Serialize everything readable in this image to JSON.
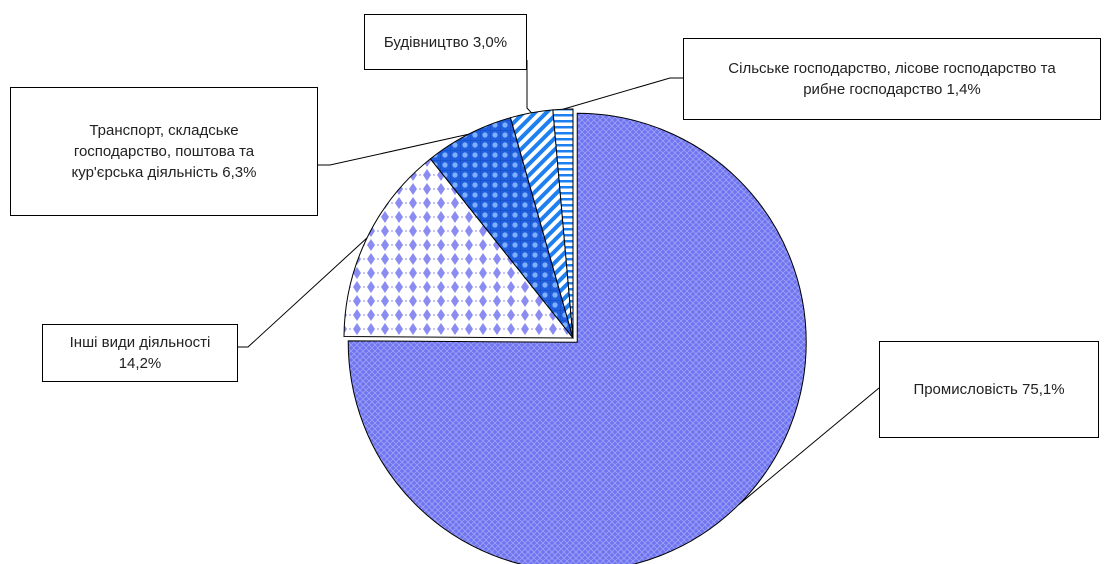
{
  "chart_data": {
    "type": "pie",
    "title": "",
    "slices": [
      {
        "label": "Промисловість 75,1%",
        "value": 75.1,
        "color": "#6f74f0",
        "pattern": "fine-crosshatch"
      },
      {
        "label": "Інші види діяльності 14,2%",
        "value": 14.2,
        "color": "#8a8cf2",
        "pattern": "diamond-dots"
      },
      {
        "label": "Транспорт, складське господарство, поштова та кур'єрська діяльність 6,3%",
        "value": 6.3,
        "color": "#1f5fe0",
        "pattern": "dots-grid"
      },
      {
        "label": "Будівництво 3,0%",
        "value": 3.0,
        "color": "#1e7ff0",
        "pattern": "diagonal-stripes"
      },
      {
        "label": "Сільське господарство, лісове господарство та рибне господарство  1,4%",
        "value": 1.4,
        "color": "#1e7ff0",
        "pattern": "horizontal-stripes"
      }
    ],
    "exploded": "Промисловість 75,1%",
    "legend": "none"
  },
  "labels": {
    "industry": "Промисловість 75,1%",
    "other_line1": "Інші види діяльності",
    "other_line2": "14,2%",
    "transport_line1": "Транспорт, складське",
    "transport_line2": "господарство, поштова та",
    "transport_line3": "кур'єрська діяльність 6,3%",
    "construction": "Будівництво 3,0%",
    "agri_line1": "Сільське господарство, лісове господарство та",
    "agri_line2": "рибне господарство  1,4%"
  }
}
